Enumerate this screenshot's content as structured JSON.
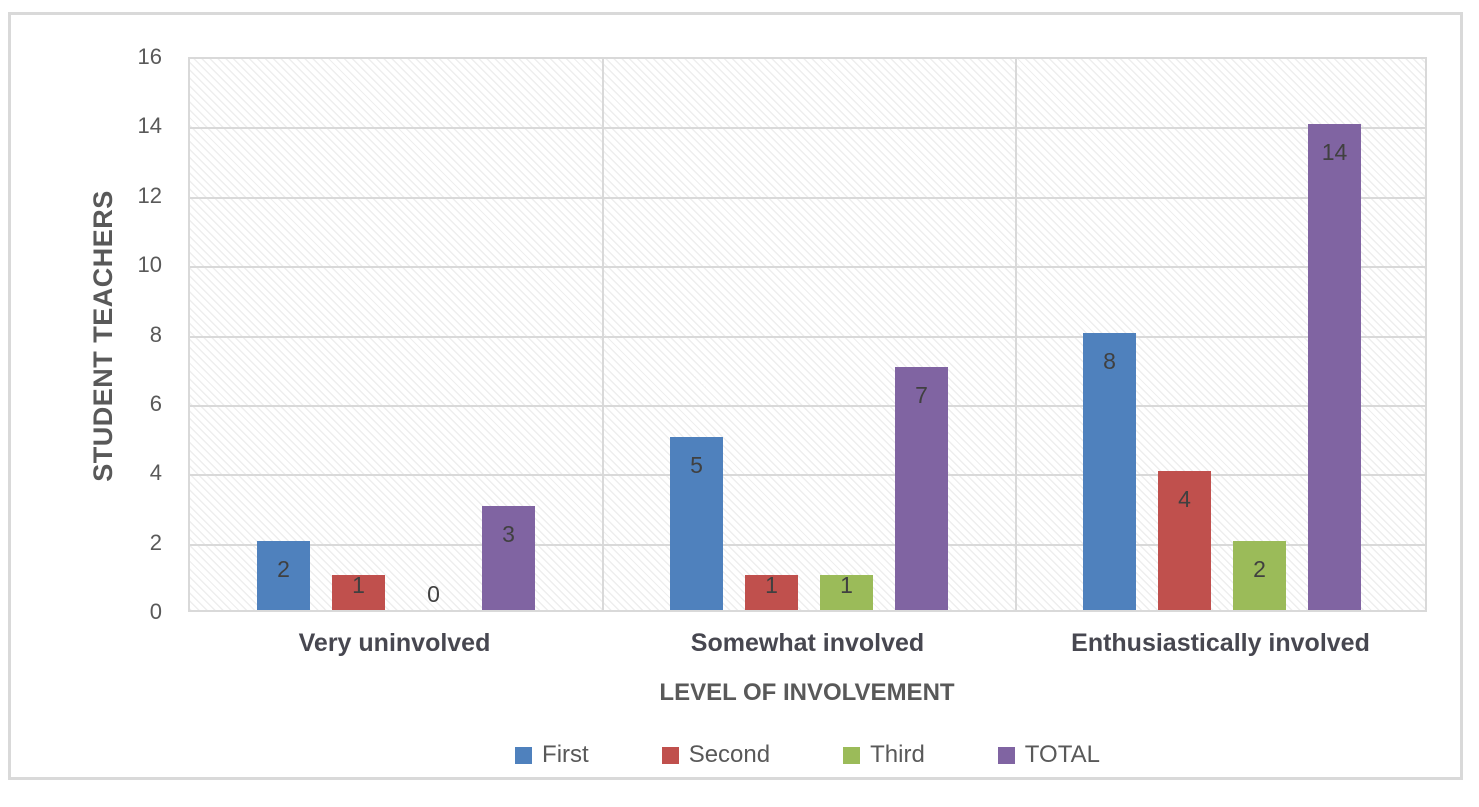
{
  "chart_data": {
    "type": "bar",
    "title": "",
    "categories": [
      "Very uninvolved",
      "Somewhat involved",
      "Enthusiastically involved"
    ],
    "series": [
      {
        "name": "First",
        "color": "#4F81BD",
        "values": [
          2,
          5,
          8
        ]
      },
      {
        "name": "Second",
        "color": "#C0504D",
        "values": [
          1,
          1,
          4
        ]
      },
      {
        "name": "Third",
        "color": "#9BBB59",
        "values": [
          0,
          1,
          2
        ]
      },
      {
        "name": "TOTAL",
        "color": "#8064A2",
        "values": [
          3,
          7,
          14
        ]
      }
    ],
    "xlabel": "LEVEL OF INVOLVEMENT",
    "ylabel": "STUDENT TEACHERS",
    "ylim": [
      0,
      16
    ],
    "yticks": [
      0,
      2,
      4,
      6,
      8,
      10,
      12,
      14,
      16
    ],
    "grid": true,
    "grid_color": "#d9d9d9",
    "plot_background": "diagonal-hatch",
    "data_labels": "inside-end",
    "data_label_color": "#404040",
    "axis_text_color": "#595959",
    "legend_position": "bottom"
  }
}
